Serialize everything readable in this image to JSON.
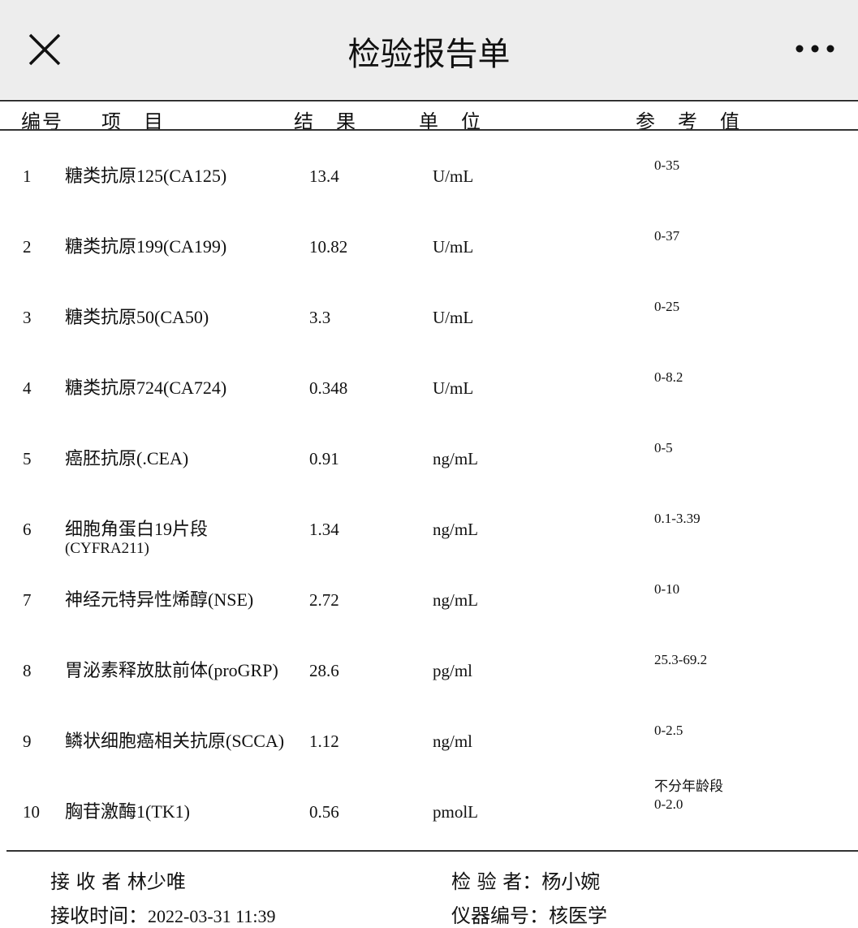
{
  "header": {
    "title": "检验报告单",
    "close_icon": "close-icon",
    "more_icon": "more-icon"
  },
  "table": {
    "columns": [
      "编号",
      "项　目",
      "结　果",
      "单　位",
      "参　考　值"
    ],
    "rows": [
      {
        "no": "1",
        "item": "糖类抗原125(CA125)",
        "item2": "",
        "result": "13.4",
        "unit": "U/mL",
        "ref": "0-35",
        "ref2": ""
      },
      {
        "no": "2",
        "item": "糖类抗原199(CA199)",
        "item2": "",
        "result": "10.82",
        "unit": "U/mL",
        "ref": "0-37",
        "ref2": ""
      },
      {
        "no": "3",
        "item": "糖类抗原50(CA50)",
        "item2": "",
        "result": "3.3",
        "unit": "U/mL",
        "ref": "0-25",
        "ref2": ""
      },
      {
        "no": "4",
        "item": "糖类抗原724(CA724)",
        "item2": "",
        "result": "0.348",
        "unit": "U/mL",
        "ref": "0-8.2",
        "ref2": ""
      },
      {
        "no": "5",
        "item": "癌胚抗原(.CEA)",
        "item2": "",
        "result": "0.91",
        "unit": "ng/mL",
        "ref": "0-5",
        "ref2": ""
      },
      {
        "no": "6",
        "item": "细胞角蛋白19片段",
        "item2": "(CYFRA211)",
        "result": "1.34",
        "unit": "ng/mL",
        "ref": "0.1-3.39",
        "ref2": ""
      },
      {
        "no": "7",
        "item": "神经元特异性烯醇(NSE)",
        "item2": "",
        "result": "2.72",
        "unit": "ng/mL",
        "ref": "0-10",
        "ref2": ""
      },
      {
        "no": "8",
        "item": "胃泌素释放肽前体(proGRP)",
        "item2": "",
        "result": "28.6",
        "unit": "pg/ml",
        "ref": "25.3-69.2",
        "ref2": ""
      },
      {
        "no": "9",
        "item": "鳞状细胞癌相关抗原(SCCA)",
        "item2": "",
        "result": "1.12",
        "unit": "ng/ml",
        "ref": "0-2.5",
        "ref2": ""
      },
      {
        "no": "10",
        "item": "胸苷激酶1(TK1)",
        "item2": "",
        "result": "0.56",
        "unit": "pmolL",
        "ref": "不分年龄段",
        "ref2": "0-2.0"
      }
    ]
  },
  "footer": {
    "receiver_label": "接 收 者 ",
    "receiver": "林少唯",
    "inspector_label": "检 验 者：",
    "inspector": "杨小婉",
    "time_label": "接收时间：",
    "time": "2022-03-31 11:39",
    "device_label": "仪器编号：",
    "device": "核医学"
  }
}
